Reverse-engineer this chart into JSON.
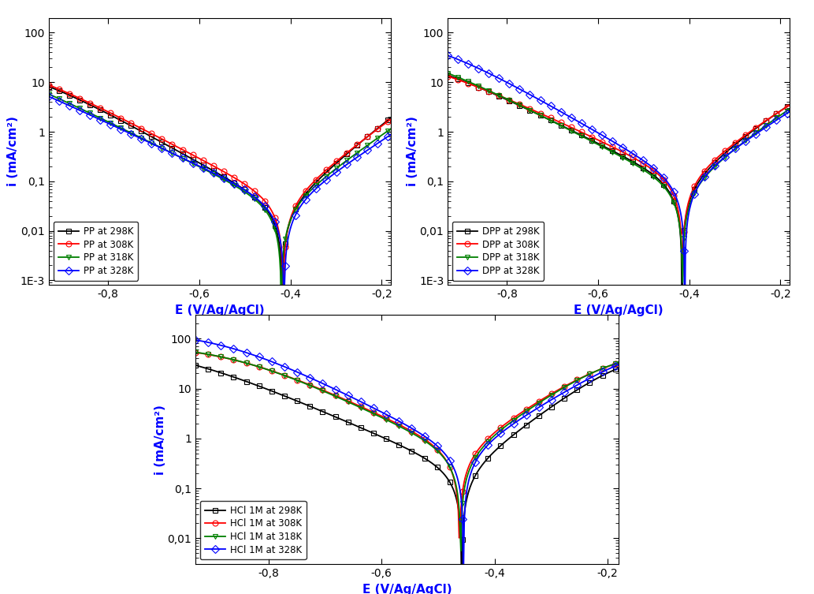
{
  "plots": [
    {
      "xlabel": "E (V/Ag/AgCl)",
      "ylabel": "i (mA/cm²)",
      "xlim": [
        -0.93,
        -0.18
      ],
      "ylim_log": [
        0.0008,
        200
      ],
      "series": [
        {
          "label": "PP at 298K",
          "color": "black",
          "marker": "s",
          "ecorr": -0.418,
          "icorr": 0.028,
          "ba": 0.055,
          "bc": 0.085,
          "ilim_a": 18,
          "ilim_c": 28
        },
        {
          "label": "PP at 308K",
          "color": "red",
          "marker": "o",
          "ecorr": -0.416,
          "icorr": 0.038,
          "ba": 0.06,
          "bc": 0.09,
          "ilim_a": 22,
          "ilim_c": 38
        },
        {
          "label": "PP at 318K",
          "color": "green",
          "marker": "v",
          "ecorr": -0.42,
          "icorr": 0.03,
          "ba": 0.065,
          "bc": 0.095,
          "ilim_a": 25,
          "ilim_c": 55
        },
        {
          "label": "PP at 328K",
          "color": "blue",
          "marker": "D",
          "ecorr": -0.414,
          "icorr": 0.032,
          "ba": 0.07,
          "bc": 0.1,
          "ilim_a": 28,
          "ilim_c": 68
        }
      ]
    },
    {
      "xlabel": "E (V/Ag/AgCl)",
      "ylabel": "i (mA/cm²)",
      "xlim": [
        -0.93,
        -0.18
      ],
      "ylim_log": [
        0.0008,
        200
      ],
      "series": [
        {
          "label": "DPP at 298K",
          "color": "black",
          "marker": "s",
          "ecorr": -0.416,
          "icorr": 0.085,
          "ba": 0.06,
          "bc": 0.095,
          "ilim_a": 18,
          "ilim_c": 52
        },
        {
          "label": "DPP at 308K",
          "color": "red",
          "marker": "o",
          "ecorr": -0.415,
          "icorr": 0.11,
          "ba": 0.065,
          "bc": 0.1,
          "ilim_a": 22,
          "ilim_c": 44
        },
        {
          "label": "DPP at 318K",
          "color": "green",
          "marker": "v",
          "ecorr": -0.415,
          "icorr": 0.075,
          "ba": 0.062,
          "bc": 0.092,
          "ilim_a": 22,
          "ilim_c": 62
        },
        {
          "label": "DPP at 328K",
          "color": "blue",
          "marker": "D",
          "ecorr": -0.41,
          "icorr": 0.095,
          "ba": 0.068,
          "bc": 0.082,
          "ilim_a": 30,
          "ilim_c": 98
        }
      ]
    },
    {
      "xlabel": "E (V/Ag/AgCl)",
      "ylabel": "i (mA/cm²)",
      "xlim": [
        -0.93,
        -0.18
      ],
      "ylim_log": [
        0.003,
        300
      ],
      "series": [
        {
          "label": "HCl 1M at 298K",
          "color": "black",
          "marker": "s",
          "ecorr": -0.458,
          "icorr": 0.22,
          "ba": 0.052,
          "bc": 0.088,
          "ilim_a": 58,
          "ilim_c": 78
        },
        {
          "label": "HCl 1M at 308K",
          "color": "red",
          "marker": "o",
          "ecorr": -0.462,
          "icorr": 0.55,
          "ba": 0.058,
          "bc": 0.082,
          "ilim_a": 60,
          "ilim_c": 78
        },
        {
          "label": "HCl 1M at 318K",
          "color": "green",
          "marker": "v",
          "ecorr": -0.46,
          "icorr": 0.48,
          "ba": 0.056,
          "bc": 0.08,
          "ilim_a": 62,
          "ilim_c": 78
        },
        {
          "label": "HCl 1M at 328K",
          "color": "blue",
          "marker": "D",
          "ecorr": -0.455,
          "icorr": 0.52,
          "ba": 0.062,
          "bc": 0.076,
          "ilim_a": 98,
          "ilim_c": 145
        }
      ]
    }
  ],
  "yticks_top": [
    100,
    10,
    1,
    0.1,
    0.01,
    0.001
  ],
  "ytick_labels_top": [
    "100",
    "10",
    "1",
    "0,1",
    "0,01",
    "1E-3"
  ],
  "yticks_bot": [
    100,
    10,
    1,
    0.1,
    0.01
  ],
  "ytick_labels_bot": [
    "100",
    "10",
    "1",
    "0,1",
    "0,01"
  ],
  "xticks": [
    -0.8,
    -0.6,
    -0.4,
    -0.2
  ],
  "xtick_labels": [
    "-0,8",
    "-0,6",
    "-0,4",
    "-0,2"
  ],
  "marker_size": 5,
  "markevery": 15,
  "linewidth": 1.3
}
